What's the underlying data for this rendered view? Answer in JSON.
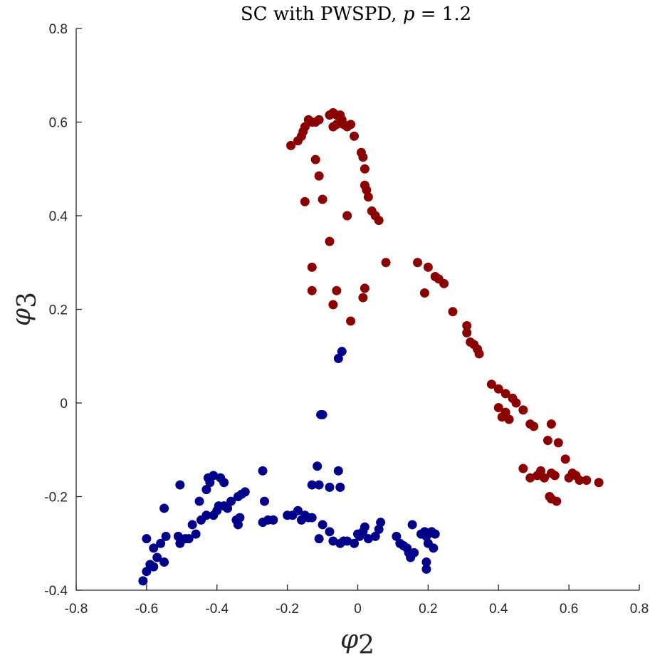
{
  "chart_data": {
    "type": "scatter",
    "title": "SC with PWSPD, p = 1.2",
    "title_parts": {
      "prefix": "SC with PWSPD, ",
      "variable": "p",
      "suffix": " = 1.2"
    },
    "xlabel": "φ2",
    "xlabel_parts": {
      "symbol": "φ",
      "sub": "2"
    },
    "ylabel": "φ3",
    "ylabel_parts": {
      "symbol": "φ",
      "sub": "3"
    },
    "xlim": [
      -0.8,
      0.8
    ],
    "ylim": [
      -0.4,
      0.8
    ],
    "xticks": [
      -0.8,
      -0.6,
      -0.4,
      -0.2,
      0,
      0.2,
      0.4,
      0.6,
      0.8
    ],
    "xtick_labels": [
      "-0.8",
      "-0.6",
      "-0.4",
      "-0.2",
      "0",
      "0.2",
      "0.4",
      "0.6",
      "0.8"
    ],
    "yticks": [
      -0.4,
      -0.2,
      0,
      0.2,
      0.4,
      0.6,
      0.8
    ],
    "ytick_labels": [
      "-0.4",
      "-0.2",
      "0",
      "0.2",
      "0.4",
      "0.6",
      "0.8"
    ],
    "grid": false,
    "legend": "none",
    "series": [
      {
        "color": "#8b0000",
        "points": [
          [
            -0.19,
            0.55
          ],
          [
            -0.17,
            0.56
          ],
          [
            -0.16,
            0.57
          ],
          [
            -0.155,
            0.58
          ],
          [
            -0.15,
            0.59
          ],
          [
            -0.14,
            0.605
          ],
          [
            -0.13,
            0.6
          ],
          [
            -0.12,
            0.6
          ],
          [
            -0.11,
            0.605
          ],
          [
            -0.08,
            0.615
          ],
          [
            -0.07,
            0.62
          ],
          [
            -0.06,
            0.615
          ],
          [
            -0.05,
            0.615
          ],
          [
            -0.045,
            0.605
          ],
          [
            -0.07,
            0.59
          ],
          [
            -0.06,
            0.595
          ],
          [
            -0.04,
            0.595
          ],
          [
            -0.03,
            0.59
          ],
          [
            -0.02,
            0.595
          ],
          [
            -0.01,
            0.57
          ],
          [
            0.01,
            0.535
          ],
          [
            0.015,
            0.525
          ],
          [
            0.02,
            0.5
          ],
          [
            0.02,
            0.465
          ],
          [
            0.025,
            0.455
          ],
          [
            0.03,
            0.44
          ],
          [
            0.04,
            0.41
          ],
          [
            0.05,
            0.4
          ],
          [
            0.06,
            0.39
          ],
          [
            -0.12,
            0.52
          ],
          [
            -0.11,
            0.485
          ],
          [
            -0.1,
            0.435
          ],
          [
            -0.15,
            0.43
          ],
          [
            -0.03,
            0.4
          ],
          [
            -0.08,
            0.345
          ],
          [
            -0.13,
            0.29
          ],
          [
            -0.13,
            0.24
          ],
          [
            -0.06,
            0.24
          ],
          [
            -0.07,
            0.21
          ],
          [
            0.02,
            0.245
          ],
          [
            0.015,
            0.225
          ],
          [
            0.08,
            0.3
          ],
          [
            -0.02,
            0.175
          ],
          [
            0.17,
            0.3
          ],
          [
            0.2,
            0.29
          ],
          [
            0.22,
            0.27
          ],
          [
            0.23,
            0.265
          ],
          [
            0.245,
            0.255
          ],
          [
            0.19,
            0.235
          ],
          [
            0.27,
            0.195
          ],
          [
            0.31,
            0.165
          ],
          [
            0.31,
            0.15
          ],
          [
            0.32,
            0.13
          ],
          [
            0.33,
            0.125
          ],
          [
            0.34,
            0.115
          ],
          [
            0.345,
            0.105
          ],
          [
            0.38,
            0.04
          ],
          [
            0.4,
            0.03
          ],
          [
            0.42,
            0.02
          ],
          [
            0.44,
            0.01
          ],
          [
            0.4,
            -0.01
          ],
          [
            0.42,
            -0.02
          ],
          [
            0.41,
            -0.03
          ],
          [
            0.43,
            -0.035
          ],
          [
            0.45,
            0.0
          ],
          [
            0.47,
            -0.015
          ],
          [
            0.49,
            -0.045
          ],
          [
            0.5,
            -0.05
          ],
          [
            0.55,
            -0.045
          ],
          [
            0.54,
            -0.08
          ],
          [
            0.57,
            -0.085
          ],
          [
            0.59,
            -0.12
          ],
          [
            0.47,
            -0.14
          ],
          [
            0.49,
            -0.16
          ],
          [
            0.51,
            -0.155
          ],
          [
            0.52,
            -0.145
          ],
          [
            0.53,
            -0.16
          ],
          [
            0.55,
            -0.15
          ],
          [
            0.56,
            -0.155
          ],
          [
            0.6,
            -0.16
          ],
          [
            0.61,
            -0.15
          ],
          [
            0.62,
            -0.155
          ],
          [
            0.63,
            -0.165
          ],
          [
            0.65,
            -0.165
          ],
          [
            0.685,
            -0.17
          ],
          [
            0.545,
            -0.2
          ],
          [
            0.55,
            -0.205
          ],
          [
            0.565,
            -0.21
          ]
        ]
      },
      {
        "color": "#00008b",
        "points": [
          [
            -0.61,
            -0.38
          ],
          [
            -0.6,
            -0.36
          ],
          [
            -0.59,
            -0.345
          ],
          [
            -0.58,
            -0.35
          ],
          [
            -0.57,
            -0.33
          ],
          [
            -0.55,
            -0.34
          ],
          [
            -0.58,
            -0.31
          ],
          [
            -0.56,
            -0.3
          ],
          [
            -0.6,
            -0.29
          ],
          [
            -0.545,
            -0.285
          ],
          [
            -0.55,
            -0.225
          ],
          [
            -0.51,
            -0.285
          ],
          [
            -0.505,
            -0.3
          ],
          [
            -0.49,
            -0.29
          ],
          [
            -0.48,
            -0.29
          ],
          [
            -0.46,
            -0.28
          ],
          [
            -0.47,
            -0.26
          ],
          [
            -0.445,
            -0.25
          ],
          [
            -0.43,
            -0.24
          ],
          [
            -0.45,
            -0.21
          ],
          [
            -0.43,
            -0.185
          ],
          [
            -0.42,
            -0.17
          ],
          [
            -0.425,
            -0.16
          ],
          [
            -0.41,
            -0.155
          ],
          [
            -0.39,
            -0.16
          ],
          [
            -0.38,
            -0.17
          ],
          [
            -0.41,
            -0.24
          ],
          [
            -0.4,
            -0.23
          ],
          [
            -0.395,
            -0.22
          ],
          [
            -0.38,
            -0.22
          ],
          [
            -0.37,
            -0.225
          ],
          [
            -0.36,
            -0.21
          ],
          [
            -0.34,
            -0.2
          ],
          [
            -0.33,
            -0.195
          ],
          [
            -0.32,
            -0.19
          ],
          [
            -0.345,
            -0.25
          ],
          [
            -0.34,
            -0.26
          ],
          [
            -0.335,
            -0.245
          ],
          [
            -0.505,
            -0.175
          ],
          [
            -0.27,
            -0.145
          ],
          [
            -0.265,
            -0.21
          ],
          [
            -0.27,
            -0.255
          ],
          [
            -0.255,
            -0.25
          ],
          [
            -0.24,
            -0.25
          ],
          [
            -0.2,
            -0.24
          ],
          [
            -0.185,
            -0.24
          ],
          [
            -0.17,
            -0.23
          ],
          [
            -0.16,
            -0.25
          ],
          [
            -0.15,
            -0.24
          ],
          [
            -0.14,
            -0.245
          ],
          [
            -0.13,
            -0.245
          ],
          [
            -0.115,
            -0.135
          ],
          [
            -0.13,
            -0.175
          ],
          [
            -0.11,
            -0.175
          ],
          [
            -0.08,
            -0.18
          ],
          [
            -0.055,
            -0.145
          ],
          [
            -0.05,
            -0.18
          ],
          [
            -0.11,
            -0.29
          ],
          [
            -0.1,
            -0.26
          ],
          [
            -0.08,
            -0.275
          ],
          [
            -0.07,
            -0.295
          ],
          [
            -0.05,
            -0.3
          ],
          [
            -0.04,
            -0.295
          ],
          [
            -0.03,
            -0.295
          ],
          [
            -0.01,
            -0.3
          ],
          [
            0.0,
            -0.28
          ],
          [
            0.005,
            -0.285
          ],
          [
            0.015,
            -0.275
          ],
          [
            0.02,
            -0.265
          ],
          [
            0.03,
            -0.29
          ],
          [
            0.05,
            -0.285
          ],
          [
            0.06,
            -0.27
          ],
          [
            0.065,
            -0.255
          ],
          [
            0.11,
            -0.285
          ],
          [
            0.12,
            -0.3
          ],
          [
            0.13,
            -0.305
          ],
          [
            0.14,
            -0.31
          ],
          [
            0.145,
            -0.32
          ],
          [
            0.15,
            -0.33
          ],
          [
            0.16,
            -0.32
          ],
          [
            0.155,
            -0.26
          ],
          [
            0.18,
            -0.28
          ],
          [
            0.19,
            -0.275
          ],
          [
            0.195,
            -0.285
          ],
          [
            0.2,
            -0.28
          ],
          [
            0.21,
            -0.275
          ],
          [
            0.22,
            -0.28
          ],
          [
            0.195,
            -0.34
          ],
          [
            0.195,
            -0.355
          ],
          [
            0.2,
            -0.3
          ],
          [
            0.215,
            -0.31
          ],
          [
            -0.055,
            0.095
          ],
          [
            -0.045,
            0.11
          ],
          [
            -0.105,
            -0.025
          ],
          [
            -0.1,
            -0.025
          ]
        ]
      }
    ]
  }
}
